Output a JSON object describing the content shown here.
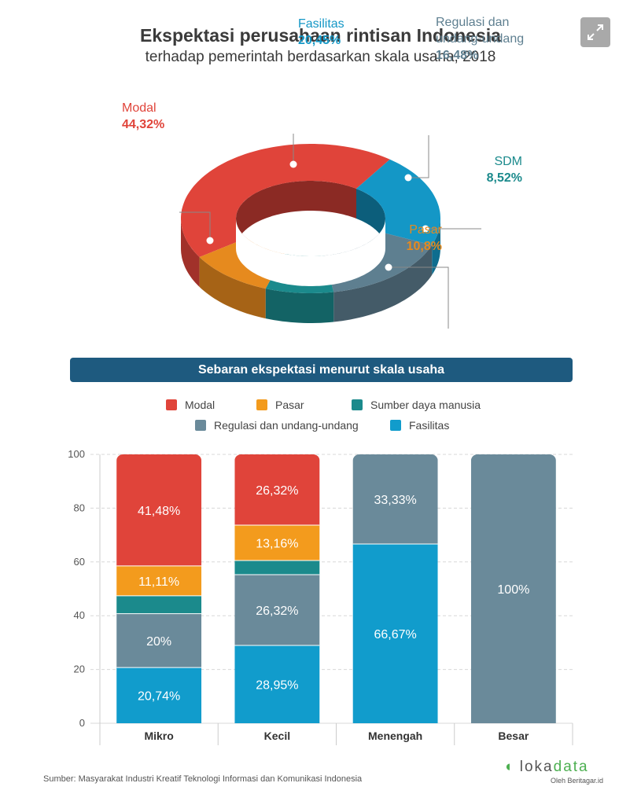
{
  "header": {
    "title": "Ekspektasi perusahaan rintisan Indonesia",
    "subtitle": "terhadap pemerintah berdasarkan skala usaha, 2018"
  },
  "chart_data": [
    {
      "type": "pie",
      "style": "3d-donut",
      "slices": [
        {
          "name": "Modal",
          "value": 44.32,
          "label": "44,32%",
          "color": "#e0443a"
        },
        {
          "name": "Fasilitas",
          "value": 20.45,
          "label": "20,45%",
          "color": "#1497c6"
        },
        {
          "name": "Regulasi dan undang-undang",
          "value": 16.48,
          "label": "16,48%",
          "color": "#5e7f90"
        },
        {
          "name": "SDM",
          "value": 8.52,
          "label": "8,52%",
          "color": "#1b8a8c"
        },
        {
          "name": "Pasar",
          "value": 10.8,
          "label": "10,8%",
          "color": "#e68a1e"
        }
      ],
      "labels": {
        "fasilitas_name": "Fasilitas",
        "regulasi_line1": "Regulasi dan",
        "regulasi_line2": "undang-undang",
        "sdm_name": "SDM"
      }
    },
    {
      "type": "bar",
      "stacked": true,
      "title": "Sebaran ekspektasi menurut skala usaha",
      "categories": [
        "Mikro",
        "Kecil",
        "Menengah",
        "Besar"
      ],
      "ylim": [
        0,
        100
      ],
      "yticks": [
        0,
        20,
        40,
        60,
        80,
        100
      ],
      "legend": [
        {
          "name": "Modal",
          "color": "#e0443a"
        },
        {
          "name": "Pasar",
          "color": "#f39b1d"
        },
        {
          "name": "Sumber daya manusia",
          "color": "#1b8a8c"
        },
        {
          "name": "Regulasi dan undang-undang",
          "color": "#6a8a9a"
        },
        {
          "name": "Fasilitas",
          "color": "#119ccc"
        }
      ],
      "series": [
        {
          "name": "Fasilitas",
          "color": "#119ccc",
          "values": [
            20.74,
            28.95,
            66.67,
            0
          ],
          "labels": [
            "20,74%",
            "28,95%",
            "66,67%",
            ""
          ]
        },
        {
          "name": "Regulasi dan undang-undang",
          "color": "#6a8a9a",
          "values": [
            20,
            26.32,
            33.33,
            100
          ],
          "labels": [
            "20%",
            "26,32%",
            "33,33%",
            "100%"
          ]
        },
        {
          "name": "Sumber daya manusia",
          "color": "#1b8a8c",
          "values": [
            6.67,
            5.26,
            0,
            0
          ],
          "labels": [
            "",
            "",
            "",
            ""
          ]
        },
        {
          "name": "Pasar",
          "color": "#f39b1d",
          "values": [
            11.11,
            13.16,
            0,
            0
          ],
          "labels": [
            "11,11%",
            "13,16%",
            "",
            ""
          ]
        },
        {
          "name": "Modal",
          "color": "#e0443a",
          "values": [
            41.48,
            26.32,
            0,
            0
          ],
          "labels": [
            "41,48%",
            "26,32%",
            "",
            ""
          ]
        }
      ]
    }
  ],
  "footer": {
    "source": "Sumber: Masyarakat Industri Kreatif Teknologi Informasi dan Komunikasi Indonesia",
    "logo_a": "loka",
    "logo_b": "data",
    "logo_sub": "Oleh Beritagar.id"
  }
}
